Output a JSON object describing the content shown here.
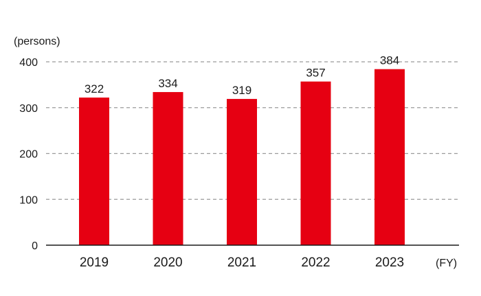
{
  "chart_data": {
    "type": "bar",
    "categories": [
      "2019",
      "2020",
      "2021",
      "2022",
      "2023"
    ],
    "values": [
      322,
      334,
      319,
      357,
      384
    ],
    "ylabel": "(persons)",
    "xlabel": "(FY)",
    "ylim": [
      0,
      400
    ],
    "yticks": [
      0,
      100,
      200,
      300,
      400
    ],
    "grid": "dashed horizontal",
    "bar_color": "#e60012",
    "axis_color": "#1a1a1a",
    "grid_color": "#9a9a9a"
  }
}
